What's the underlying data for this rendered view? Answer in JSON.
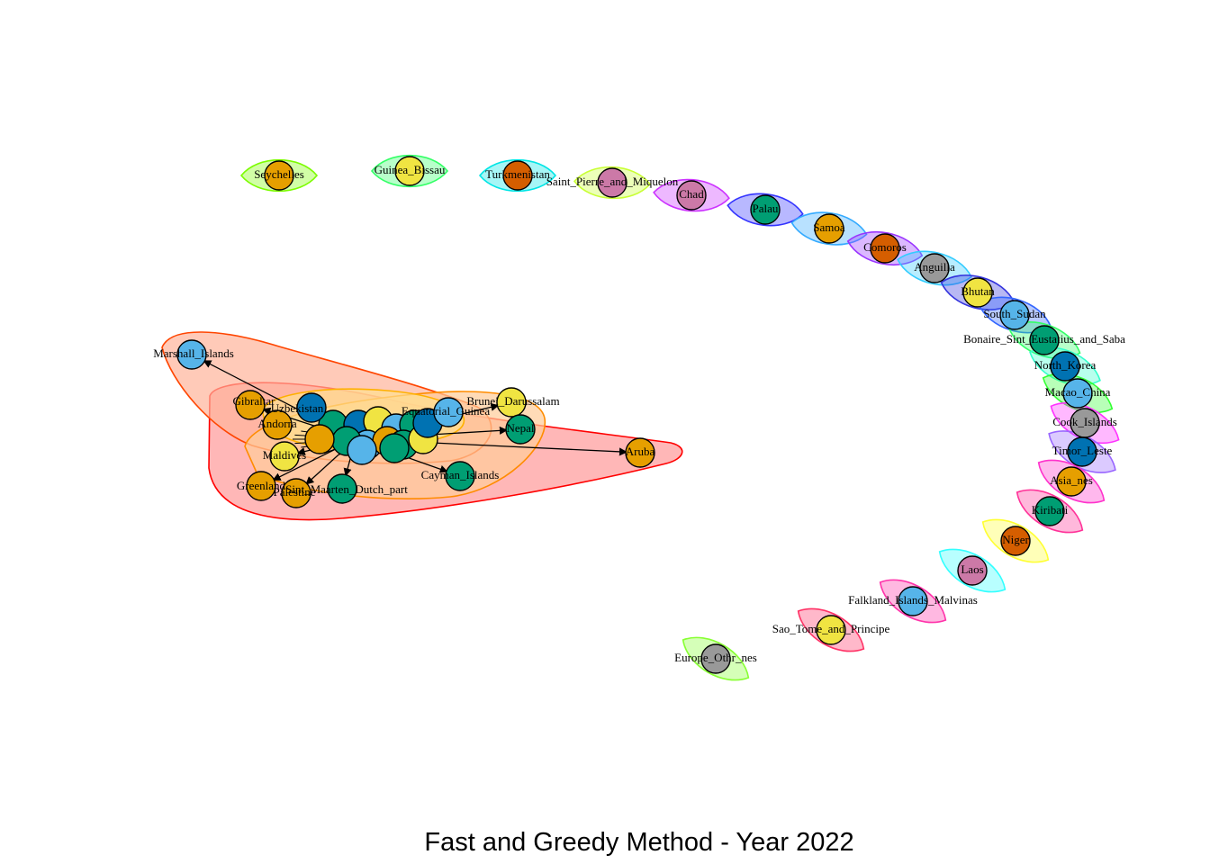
{
  "title": "Fast and Greedy Method - Year 2022",
  "colors": {
    "orange": "#E69F00",
    "yellow": "#F0E442",
    "green": "#009E73",
    "skyblue": "#56B4E9",
    "blue": "#0072B2",
    "vermilion": "#D55E00",
    "pink": "#CC79A7",
    "gray": "#999999"
  },
  "communities": [
    {
      "fill": "#FF9999",
      "stroke": "#FF0000",
      "members": [
        "Aruba",
        "Greenland",
        "Sint_Maarten_Dutch_part",
        "Palestine"
      ]
    },
    {
      "fill": "#FFB49A",
      "stroke": "#FF4500",
      "members": [
        "Marshall_Islands",
        "Gibraltar",
        "Uzbekistan"
      ]
    },
    {
      "fill": "#FFCC99",
      "stroke": "#FF8C00",
      "members": [
        "Brunei_Darussalam",
        "Cayman_Islands",
        "Nepal",
        "Maldives"
      ]
    },
    {
      "fill": "#FFE08F",
      "stroke": "#FFB000",
      "members": [
        "Equatorial_Guinea",
        "Andorra"
      ]
    }
  ],
  "isolates": [
    {
      "label": "Seychelles",
      "color": "orange",
      "ring": "#7CFC00"
    },
    {
      "label": "Guinea_Bissau",
      "color": "yellow",
      "ring": "#33FF66"
    },
    {
      "label": "Turkmenistan",
      "color": "vermilion",
      "ring": "#00E5E5"
    },
    {
      "label": "Saint_Pierre_and_Miquelon",
      "color": "pink",
      "ring": "#C8FF33"
    },
    {
      "label": "Chad",
      "color": "pink",
      "ring": "#CC33FF"
    },
    {
      "label": "Palau",
      "color": "green",
      "ring": "#3333FF"
    },
    {
      "label": "Samoa",
      "color": "orange",
      "ring": "#33AAFF"
    },
    {
      "label": "Comoros",
      "color": "vermilion",
      "ring": "#9933FF"
    },
    {
      "label": "Anguilla",
      "color": "gray",
      "ring": "#33CCFF"
    },
    {
      "label": "Bhutan",
      "color": "yellow",
      "ring": "#3333DD"
    },
    {
      "label": "South_Sudan",
      "color": "skyblue",
      "ring": "#3366FF"
    },
    {
      "label": "Bonaire_Sint_Eustatius_and_Saba",
      "color": "green",
      "ring": "#33FF66"
    },
    {
      "label": "North_Korea",
      "color": "blue",
      "ring": "#33FFCC"
    },
    {
      "label": "Macao_China",
      "color": "skyblue",
      "ring": "#33FF33"
    },
    {
      "label": "Cook_Islands",
      "color": "gray",
      "ring": "#FF33FF"
    },
    {
      "label": "Timor_Leste",
      "color": "blue",
      "ring": "#9966FF"
    },
    {
      "label": "Asia_nes",
      "color": "orange",
      "ring": "#FF33CC"
    },
    {
      "label": "Kiribati",
      "color": "green",
      "ring": "#FF3399"
    },
    {
      "label": "Niger",
      "color": "vermilion",
      "ring": "#FFFF33"
    },
    {
      "label": "Laos",
      "color": "pink",
      "ring": "#33FFFF"
    },
    {
      "label": "Falkland_Islands_Malvinas",
      "color": "skyblue",
      "ring": "#FF33AA"
    },
    {
      "label": "Sao_Tome_and_Principe",
      "color": "yellow",
      "ring": "#FF3366"
    },
    {
      "label": "Europe_Othr_nes",
      "color": "gray",
      "ring": "#88FF33"
    }
  ],
  "cluster_nodes": [
    {
      "label": "Marshall_Islands",
      "color": "skyblue"
    },
    {
      "label": "Gibraltar",
      "color": "orange"
    },
    {
      "label": "Uzbekistan",
      "color": "blue"
    },
    {
      "label": "Andorra",
      "color": "orange"
    },
    {
      "label": "Brunei_Darussalam",
      "color": "yellow"
    },
    {
      "label": "Equatorial_Guinea",
      "color": "skyblue"
    },
    {
      "label": "Nepal",
      "color": "green"
    },
    {
      "label": "Aruba",
      "color": "orange"
    },
    {
      "label": "Cayman_Islands",
      "color": "green"
    },
    {
      "label": "Maldives",
      "color": "yellow"
    },
    {
      "label": "Greenland",
      "color": "orange"
    },
    {
      "label": "Palestine",
      "color": "orange"
    },
    {
      "label": "Sint_Maarten_Dutch_part",
      "color": "green"
    }
  ]
}
